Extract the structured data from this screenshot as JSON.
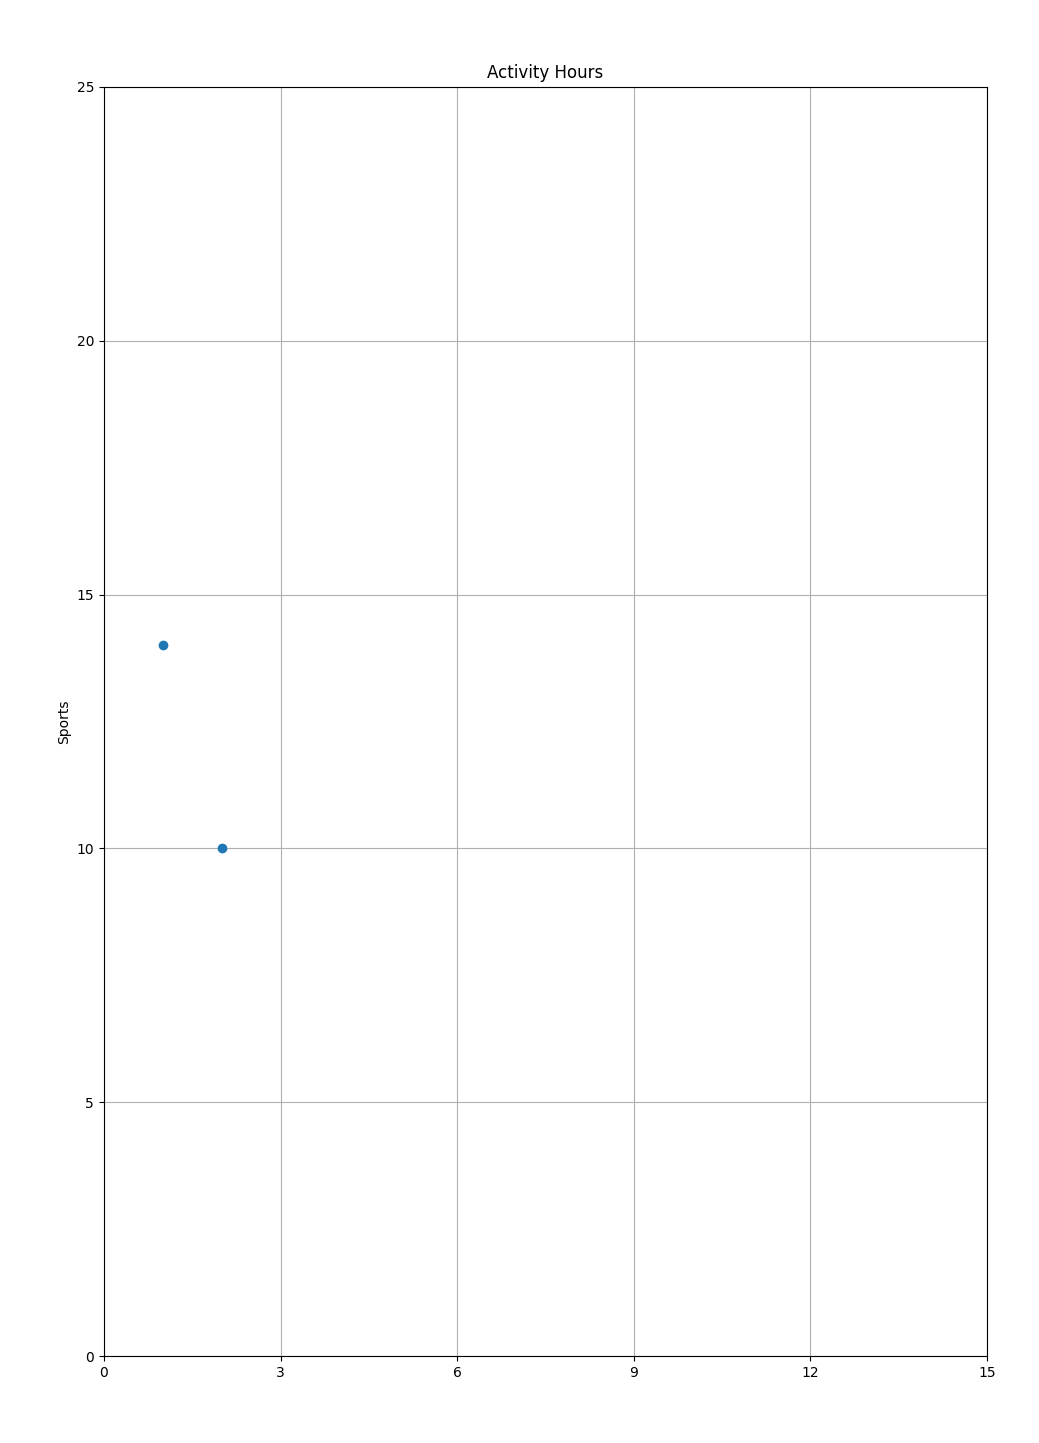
{
  "chart_data": {
    "type": "scatter",
    "title": "Activity Hours",
    "y_label": "Sports",
    "x": [
      1,
      2
    ],
    "values": [
      14,
      10
    ],
    "xlim": [
      0,
      15
    ],
    "ylim": [
      0,
      25
    ],
    "xticks": [
      0,
      3,
      6,
      9,
      12,
      15
    ],
    "yticks": [
      0,
      5,
      10,
      15,
      20,
      25
    ],
    "grid": true
  }
}
